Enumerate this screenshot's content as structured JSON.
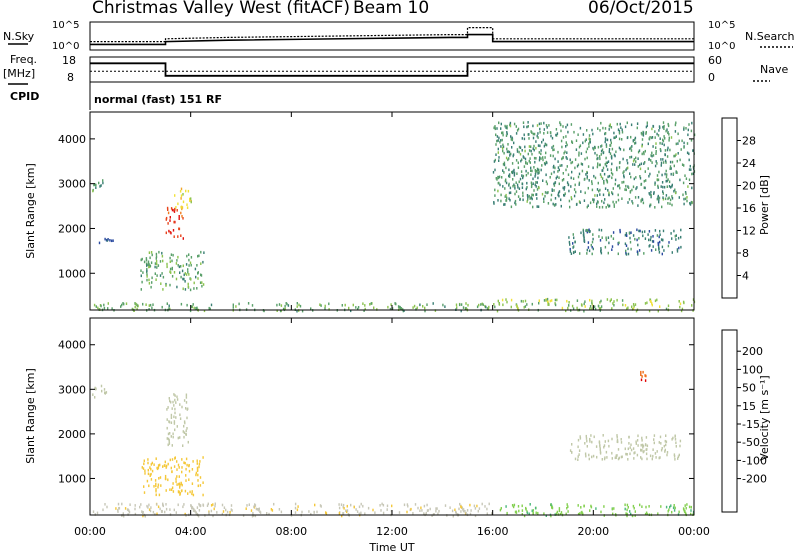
{
  "header": {
    "title": "Christmas Valley West (fitACF)",
    "beam": "Beam 10",
    "date": "06/Oct/2015"
  },
  "side_labels": {
    "nsky": "N.Sky",
    "nsearch": "N.Search",
    "freq": "Freq.",
    "freq_unit": "[MHz]",
    "cpid": "CPID",
    "nave": "Nave"
  },
  "colors": {
    "power_scale": [
      "#1a2fe0",
      "#2a4aa0",
      "#3a7f74",
      "#5aa06a",
      "#8cc34f",
      "#f2e23a",
      "#f1a62a",
      "#f07a1f",
      "#e8461c",
      "#e01010"
    ],
    "velocity_scale": [
      "#e00000",
      "#ef6a14",
      "#f3a216",
      "#f4c83a",
      "#c8c8b8",
      "#c0c8a8",
      "#84d050",
      "#4db87c",
      "#2f6ec4",
      "#2030a0"
    ]
  },
  "chart_data": [
    {
      "type": "line",
      "name": "noise-panel",
      "left_axis": {
        "label": "N.Sky",
        "ticks": [
          "10^5",
          "10^0"
        ]
      },
      "right_axis": {
        "label": "N.Search",
        "ticks": [
          "10^5",
          "10^0"
        ]
      },
      "series": [
        {
          "name": "N.Sky",
          "x": [
            0,
            3,
            3,
            5.5,
            14.3,
            15,
            15,
            16,
            16,
            24
          ],
          "y_level": [
            0.2,
            0.2,
            0.3,
            0.35,
            0.45,
            0.45,
            0.55,
            0.55,
            0.3,
            0.3
          ]
        },
        {
          "name": "N.Search",
          "x": [
            0,
            3,
            3,
            5.5,
            14.3,
            15,
            15,
            16,
            16,
            24
          ],
          "y_level": [
            0.3,
            0.3,
            0.4,
            0.45,
            0.55,
            0.55,
            0.8,
            0.8,
            0.4,
            0.4
          ]
        }
      ]
    },
    {
      "type": "line",
      "name": "frequency-panel",
      "left_axis": {
        "label": "Freq. [MHz]",
        "ticks": [
          "18",
          "8"
        ],
        "ylim": [
          8,
          18
        ]
      },
      "right_axis": {
        "label": "Nave",
        "ticks": [
          "60",
          "0"
        ],
        "ylim": [
          0,
          60
        ]
      },
      "series": [
        {
          "name": "Freq",
          "x": [
            0,
            3,
            3,
            15,
            15,
            24
          ],
          "y": [
            15.5,
            15.5,
            10.5,
            10.5,
            15.5,
            15.5
          ]
        },
        {
          "name": "Nave",
          "x": [
            0,
            24
          ],
          "y": [
            26,
            26
          ]
        }
      ]
    },
    {
      "type": "table",
      "name": "cpid-panel",
      "label": "normal (fast) 151 RF"
    },
    {
      "type": "heatmap",
      "name": "power-panel",
      "xlabel": "",
      "ylabel": "Slant Range [km]",
      "xlim": [
        0,
        24
      ],
      "ylim": [
        180,
        4600
      ],
      "yticks": [
        1000,
        2000,
        3000,
        4000
      ],
      "colorbar": {
        "label": "Power [dB]",
        "ticks": [
          4,
          8,
          12,
          16,
          20,
          24,
          28
        ],
        "range": [
          0,
          32
        ]
      },
      "regions": [
        {
          "t": [
            0.05,
            0.7
          ],
          "r": [
            2850,
            3120
          ],
          "v": 10
        },
        {
          "t": [
            0.3,
            0.9
          ],
          "r": [
            1700,
            1800
          ],
          "v": 6
        },
        {
          "t": [
            3.0,
            3.7
          ],
          "r": [
            1750,
            2500
          ],
          "v": 28
        },
        {
          "t": [
            3.3,
            4.0
          ],
          "r": [
            2450,
            2950
          ],
          "v": 18
        },
        {
          "t": [
            2.0,
            4.5
          ],
          "r": [
            650,
            1500
          ],
          "v": 12
        },
        {
          "t": [
            0.1,
            16
          ],
          "r": [
            180,
            360
          ],
          "v": 12
        },
        {
          "t": [
            16,
            24
          ],
          "r": [
            180,
            450
          ],
          "v": 14
        },
        {
          "t": [
            19,
            23.5
          ],
          "r": [
            1450,
            2000
          ],
          "v": 8
        },
        {
          "t": [
            16,
            24
          ],
          "r": [
            2500,
            4400
          ],
          "v": 10
        }
      ]
    },
    {
      "type": "heatmap",
      "name": "velocity-panel",
      "xlabel": "Time UT",
      "ylabel": "Slant Range [km]",
      "xlim": [
        0,
        24
      ],
      "ylim": [
        180,
        4600
      ],
      "yticks": [
        1000,
        2000,
        3000,
        4000
      ],
      "xticks": [
        "00:00",
        "04:00",
        "08:00",
        "12:00",
        "16:00",
        "20:00",
        "00:00"
      ],
      "colorbar": {
        "label": "Velocity [m s⁻¹]",
        "ticks": [
          200,
          100,
          50,
          15,
          -15,
          -50,
          -100,
          -200
        ]
      },
      "regions": [
        {
          "t": [
            0.05,
            0.7
          ],
          "r": [
            2850,
            3120
          ],
          "v": 0
        },
        {
          "t": [
            3.0,
            3.9
          ],
          "r": [
            1750,
            2950
          ],
          "v": 0
        },
        {
          "t": [
            2.0,
            4.5
          ],
          "r": [
            650,
            1500
          ],
          "v": -60
        },
        {
          "t": [
            0.1,
            16
          ],
          "r": [
            180,
            460
          ],
          "v": -30
        },
        {
          "t": [
            19,
            23.5
          ],
          "r": [
            1450,
            2000
          ],
          "v": 0
        },
        {
          "t": [
            21.8,
            22.1
          ],
          "r": [
            3200,
            3450
          ],
          "v": -220
        },
        {
          "t": [
            16,
            24
          ],
          "r": [
            180,
            450
          ],
          "v": 30
        }
      ]
    }
  ]
}
